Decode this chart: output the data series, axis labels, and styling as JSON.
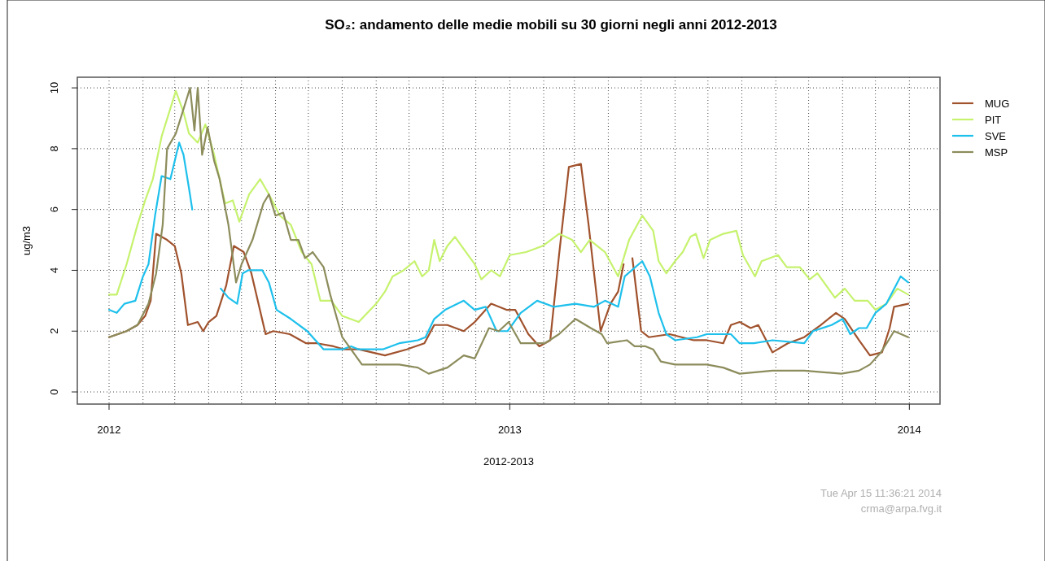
{
  "chart_data": {
    "type": "line",
    "title": "SO₂: andamento delle medie mobili su 30 giorni negli anni 2012-2013",
    "xlabel": "2012-2013",
    "ylabel": "ug/m3",
    "annotations": [
      "Tue Apr 15 11:36:21 2014",
      "crma@arpa.fvg.it"
    ],
    "xlim": [
      "2011-12-03",
      "2014-01-29"
    ],
    "xticks": [
      {
        "value": "2012-01-01",
        "label": "2012"
      },
      {
        "value": "2012-02-01",
        "label": null
      },
      {
        "value": "2012-03-01",
        "label": null
      },
      {
        "value": "2012-04-01",
        "label": null
      },
      {
        "value": "2012-05-01",
        "label": null
      },
      {
        "value": "2012-06-01",
        "label": null
      },
      {
        "value": "2012-07-01",
        "label": null
      },
      {
        "value": "2012-08-01",
        "label": null
      },
      {
        "value": "2012-09-01",
        "label": null
      },
      {
        "value": "2012-10-01",
        "label": null
      },
      {
        "value": "2012-11-01",
        "label": null
      },
      {
        "value": "2012-12-01",
        "label": null
      },
      {
        "value": "2013-01-01",
        "label": "2013"
      },
      {
        "value": "2013-02-01",
        "label": null
      },
      {
        "value": "2013-03-01",
        "label": null
      },
      {
        "value": "2013-04-01",
        "label": null
      },
      {
        "value": "2013-05-01",
        "label": null
      },
      {
        "value": "2013-06-01",
        "label": null
      },
      {
        "value": "2013-07-01",
        "label": null
      },
      {
        "value": "2013-08-01",
        "label": null
      },
      {
        "value": "2013-09-01",
        "label": null
      },
      {
        "value": "2013-10-01",
        "label": null
      },
      {
        "value": "2013-11-01",
        "label": null
      },
      {
        "value": "2013-12-01",
        "label": null
      },
      {
        "value": "2014-01-01",
        "label": "2014"
      }
    ],
    "ylim": [
      -0.4,
      10.35
    ],
    "yticks": [
      0,
      2,
      4,
      6,
      8,
      10
    ],
    "grid": true,
    "legend": "top right",
    "marker": "none",
    "line_style": "solid",
    "series": [
      {
        "name": "MUG",
        "color": "#a0522d",
        "x": [
          "2012-01-01",
          "2012-01-17",
          "2012-01-27",
          "2012-02-03",
          "2012-02-08",
          "2012-02-13",
          "2012-02-23",
          "2012-03-01",
          "2012-03-07",
          "2012-03-13",
          "2012-03-22",
          "2012-03-27",
          "2012-04-01",
          "2012-04-08",
          "2012-04-17",
          "2012-04-24",
          "2012-05-03",
          "2012-05-10",
          "2012-05-23",
          "2012-05-30",
          "2012-06-14",
          "2012-06-29",
          "2012-07-09",
          "2012-07-24",
          "2012-08-03",
          "2012-08-16",
          "2012-09-09",
          "2012-09-29",
          "2012-10-15",
          "2012-10-24",
          "2012-11-05",
          "2012-11-20",
          "2012-11-30",
          "2012-12-15",
          "2012-12-29",
          "2013-01-06",
          "2013-01-18",
          "2013-01-28",
          "2013-02-07",
          "2013-02-15",
          "2013-02-24",
          "2013-03-07",
          "2013-03-14",
          "2013-03-25",
          "2013-04-03",
          "2013-04-10",
          "2013-04-15",
          "2013-04-19",
          "2013-04-23",
          "2013-05-01",
          "2013-05-08",
          "2013-05-27",
          "2013-06-18",
          "2013-06-30",
          "2013-07-15",
          "2013-07-22",
          "2013-07-30",
          "2013-08-09",
          "2013-08-16",
          "2013-08-29",
          "2013-09-12",
          "2013-09-27",
          "2013-10-12",
          "2013-10-26",
          "2013-11-03",
          "2013-11-16",
          "2013-11-26",
          "2013-12-07",
          "2013-12-14",
          "2013-12-18",
          "2013-12-31"
        ],
        "values": [
          1.8,
          2.0,
          2.2,
          2.5,
          3.0,
          5.2,
          5.0,
          4.8,
          3.9,
          2.2,
          2.3,
          2.0,
          2.3,
          2.5,
          3.5,
          4.8,
          4.6,
          3.9,
          1.9,
          2.0,
          1.9,
          1.6,
          1.6,
          1.5,
          1.4,
          1.4,
          1.2,
          1.4,
          1.6,
          2.2,
          2.2,
          2.0,
          2.3,
          2.9,
          2.7,
          2.7,
          1.9,
          1.5,
          1.7,
          4.5,
          7.4,
          7.5,
          5.5,
          2.0,
          2.9,
          3.3,
          4.2,
          null,
          4.4,
          2.0,
          1.8,
          1.9,
          1.7,
          1.7,
          1.6,
          2.2,
          2.3,
          2.1,
          2.2,
          1.3,
          1.6,
          1.8,
          2.2,
          2.6,
          2.4,
          1.7,
          1.2,
          1.3,
          2.1,
          2.8,
          2.9
        ]
      },
      {
        "name": "PIT",
        "color": "#c6f26e",
        "x": [
          "2012-01-01",
          "2012-01-08",
          "2012-01-17",
          "2012-01-27",
          "2012-02-03",
          "2012-02-10",
          "2012-02-18",
          "2012-03-02",
          "2012-03-09",
          "2012-03-14",
          "2012-03-22",
          "2012-03-29",
          "2012-04-06",
          "2012-04-16",
          "2012-04-23",
          "2012-04-29",
          "2012-05-08",
          "2012-05-18",
          "2012-05-26",
          "2012-06-05",
          "2012-06-15",
          "2012-06-25",
          "2012-07-04",
          "2012-07-12",
          "2012-07-22",
          "2012-08-01",
          "2012-08-16",
          "2012-09-01",
          "2012-09-09",
          "2012-09-16",
          "2012-09-26",
          "2012-10-06",
          "2012-10-13",
          "2012-10-19",
          "2012-10-24",
          "2012-10-29",
          "2012-11-05",
          "2012-11-12",
          "2012-11-22",
          "2012-11-30",
          "2012-12-06",
          "2012-12-15",
          "2012-12-23",
          "2013-01-01",
          "2013-01-16",
          "2013-01-31",
          "2013-02-15",
          "2013-02-27",
          "2013-03-07",
          "2013-03-15",
          "2013-03-29",
          "2013-04-10",
          "2013-04-20",
          "2013-05-02",
          "2013-05-12",
          "2013-05-17",
          "2013-05-24",
          "2013-06-01",
          "2013-06-08",
          "2013-06-15",
          "2013-06-20",
          "2013-06-27",
          "2013-07-03",
          "2013-07-15",
          "2013-07-27",
          "2013-08-02",
          "2013-08-13",
          "2013-08-19",
          "2013-09-03",
          "2013-09-11",
          "2013-09-23",
          "2013-10-02",
          "2013-10-09",
          "2013-10-25",
          "2013-11-03",
          "2013-11-12",
          "2013-11-24",
          "2013-12-01",
          "2013-12-11",
          "2013-12-21",
          "2013-12-31"
        ],
        "values": [
          3.2,
          3.2,
          4.2,
          5.5,
          6.3,
          7.0,
          8.4,
          9.9,
          9.2,
          8.5,
          8.2,
          8.8,
          7.8,
          6.2,
          6.3,
          5.6,
          6.5,
          7.0,
          6.5,
          5.8,
          5.5,
          4.6,
          4.2,
          3.0,
          3.0,
          2.5,
          2.3,
          2.9,
          3.3,
          3.8,
          4.0,
          4.3,
          3.8,
          4.0,
          5.0,
          4.3,
          4.8,
          5.1,
          4.6,
          4.2,
          3.7,
          4.0,
          3.8,
          4.5,
          4.6,
          4.8,
          5.2,
          5.0,
          4.6,
          5.0,
          4.6,
          3.8,
          5.0,
          5.8,
          5.3,
          4.3,
          3.9,
          4.3,
          4.6,
          5.1,
          5.2,
          4.4,
          5.0,
          5.2,
          5.3,
          4.5,
          3.8,
          4.3,
          4.5,
          4.1,
          4.1,
          3.7,
          3.9,
          3.1,
          3.4,
          3.0,
          3.0,
          2.7,
          2.9,
          3.4,
          3.2
        ]
      },
      {
        "name": "SVE",
        "color": "#1ec0ec",
        "x": [
          "2012-01-01",
          "2012-01-08",
          "2012-01-15",
          "2012-01-25",
          "2012-02-01",
          "2012-02-06",
          "2012-02-12",
          "2012-02-18",
          "2012-02-26",
          "2012-03-05",
          "2012-03-09",
          "2012-03-14",
          "2012-03-17",
          "2012-04-01",
          "2012-04-12",
          "2012-04-19",
          "2012-04-27",
          "2012-05-02",
          "2012-05-07",
          "2012-05-20",
          "2012-05-26",
          "2012-06-02",
          "2012-06-15",
          "2012-06-30",
          "2012-07-15",
          "2012-08-01",
          "2012-08-09",
          "2012-08-16",
          "2012-09-07",
          "2012-09-22",
          "2012-10-09",
          "2012-10-16",
          "2012-10-24",
          "2012-11-03",
          "2012-11-20",
          "2012-11-30",
          "2012-12-10",
          "2012-12-20",
          "2012-12-30",
          "2013-01-11",
          "2013-01-26",
          "2013-02-10",
          "2013-03-02",
          "2013-03-19",
          "2013-03-29",
          "2013-04-10",
          "2013-04-16",
          "2013-05-02",
          "2013-05-09",
          "2013-05-17",
          "2013-05-24",
          "2013-06-01",
          "2013-06-21",
          "2013-06-30",
          "2013-07-22",
          "2013-07-30",
          "2013-08-12",
          "2013-08-29",
          "2013-09-27",
          "2013-10-05",
          "2013-10-22",
          "2013-11-01",
          "2013-11-08",
          "2013-11-16",
          "2013-11-23",
          "2013-12-01",
          "2013-12-11",
          "2013-12-24",
          "2013-12-31"
        ],
        "values": [
          2.7,
          2.6,
          2.9,
          3.0,
          3.8,
          4.2,
          5.8,
          7.1,
          7.0,
          8.2,
          7.8,
          6.7,
          6.0,
          null,
          3.4,
          3.1,
          2.9,
          3.9,
          4.0,
          4.0,
          3.6,
          2.7,
          2.4,
          2.0,
          1.4,
          1.4,
          1.5,
          1.4,
          1.4,
          1.6,
          1.7,
          1.8,
          2.4,
          2.7,
          3.0,
          2.7,
          2.8,
          2.0,
          2.0,
          2.6,
          3.0,
          2.8,
          2.9,
          2.8,
          3.0,
          2.8,
          3.8,
          4.3,
          3.8,
          2.6,
          1.9,
          1.7,
          1.8,
          1.9,
          1.9,
          1.6,
          1.6,
          1.7,
          1.6,
          2.0,
          2.2,
          2.4,
          1.9,
          2.1,
          2.1,
          2.6,
          2.9,
          3.8,
          3.6
        ]
      },
      {
        "name": "MSP",
        "color": "#8c8c5c",
        "x": [
          "2012-01-01",
          "2012-01-17",
          "2012-01-27",
          "2012-02-06",
          "2012-02-13",
          "2012-02-19",
          "2012-02-23",
          "2012-03-02",
          "2012-03-09",
          "2012-03-15",
          "2012-03-19",
          "2012-03-22",
          "2012-03-26",
          "2012-03-31",
          "2012-04-06",
          "2012-04-11",
          "2012-04-19",
          "2012-04-26",
          "2012-05-01",
          "2012-05-11",
          "2012-05-21",
          "2012-05-26",
          "2012-06-01",
          "2012-06-08",
          "2012-06-15",
          "2012-06-22",
          "2012-06-28",
          "2012-07-05",
          "2012-07-15",
          "2012-07-21",
          "2012-08-01",
          "2012-08-09",
          "2012-08-19",
          "2012-08-31",
          "2012-09-22",
          "2012-10-09",
          "2012-10-19",
          "2012-11-05",
          "2012-11-20",
          "2012-11-30",
          "2012-12-13",
          "2012-12-22",
          "2012-12-31",
          "2013-01-11",
          "2013-02-02",
          "2013-02-15",
          "2013-03-02",
          "2013-03-16",
          "2013-03-26",
          "2013-03-31",
          "2013-04-18",
          "2013-04-25",
          "2013-05-05",
          "2013-05-12",
          "2013-05-19",
          "2013-06-01",
          "2013-06-30",
          "2013-07-15",
          "2013-07-30",
          "2013-08-29",
          "2013-09-27",
          "2013-10-31",
          "2013-11-16",
          "2013-11-26",
          "2013-12-06",
          "2013-12-13",
          "2013-12-18",
          "2013-12-31"
        ],
        "values": [
          1.8,
          2.0,
          2.2,
          2.9,
          3.9,
          5.5,
          8.0,
          8.5,
          9.3,
          10.0,
          8.6,
          10.0,
          7.8,
          8.7,
          7.6,
          7.0,
          5.5,
          3.6,
          4.2,
          5.0,
          6.2,
          6.5,
          5.8,
          5.9,
          5.0,
          5.0,
          4.4,
          4.6,
          4.1,
          3.2,
          1.8,
          1.4,
          0.9,
          0.9,
          0.9,
          0.8,
          0.6,
          0.8,
          1.2,
          1.1,
          2.1,
          2.0,
          2.3,
          1.6,
          1.6,
          1.9,
          2.4,
          2.1,
          1.9,
          1.6,
          1.7,
          1.5,
          1.5,
          1.4,
          1.0,
          0.9,
          0.9,
          0.8,
          0.6,
          0.7,
          0.7,
          0.6,
          0.7,
          0.9,
          1.3,
          1.7,
          2.0,
          1.8
        ]
      }
    ]
  }
}
